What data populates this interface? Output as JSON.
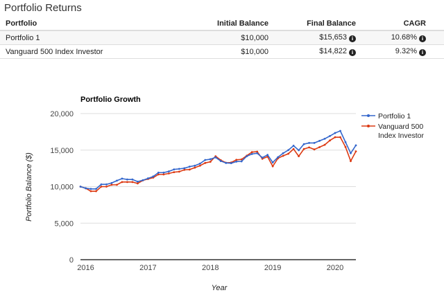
{
  "heading": "Portfolio Returns",
  "table": {
    "headers": [
      "Portfolio",
      "Initial Balance",
      "Final Balance",
      "CAGR"
    ],
    "rows": [
      [
        "Portfolio 1",
        "$10,000",
        "$15,653",
        "10.68%"
      ],
      [
        "Vanguard 500 Index Investor",
        "$10,000",
        "$14,822",
        "9.32%"
      ]
    ]
  },
  "chart_data": {
    "type": "line",
    "title": "Portfolio Growth",
    "xlabel": "Year",
    "ylabel": "Portfolio Balance ($)",
    "ylim": [
      0,
      20000
    ],
    "yticks": [
      "0",
      "5,000",
      "10,000",
      "15,000",
      "20,000"
    ],
    "xticks": [
      "2016",
      "2017",
      "2018",
      "2019",
      "2020"
    ],
    "grid": true,
    "legend": "right",
    "x_start": "2015-12",
    "x_end": "2020-05",
    "x_interval": "monthly",
    "series": [
      {
        "name": "Portfolio 1",
        "color": "#3366cc",
        "values": [
          10000,
          9780,
          9690,
          9690,
          10310,
          10310,
          10500,
          10820,
          11100,
          10980,
          10980,
          10690,
          10880,
          11130,
          11390,
          11920,
          11920,
          12080,
          12360,
          12430,
          12520,
          12740,
          12870,
          13150,
          13650,
          13750,
          14000,
          13500,
          13240,
          13210,
          13430,
          13460,
          14160,
          14470,
          14570,
          13970,
          14350,
          13310,
          14030,
          14570,
          15000,
          15600,
          14980,
          15820,
          15980,
          15980,
          16270,
          16550,
          16930,
          17340,
          17630,
          16090,
          14570,
          15653
        ]
      },
      {
        "name": "Vanguard 500 Index Investor",
        "legend_lines": [
          "Vanguard 500",
          "Index Investor"
        ],
        "color": "#dc3912",
        "values": [
          10000,
          9780,
          9370,
          9370,
          10000,
          10000,
          10250,
          10250,
          10630,
          10630,
          10630,
          10440,
          10850,
          11040,
          11230,
          11670,
          11670,
          11800,
          11980,
          12050,
          12300,
          12340,
          12600,
          12870,
          13240,
          13400,
          14160,
          13620,
          13270,
          13300,
          13670,
          13730,
          14240,
          14720,
          14790,
          13810,
          14100,
          12780,
          13880,
          14220,
          14500,
          15150,
          14160,
          15150,
          15370,
          15090,
          15400,
          15720,
          16320,
          16760,
          16760,
          15430,
          13500,
          14822
        ]
      }
    ]
  }
}
